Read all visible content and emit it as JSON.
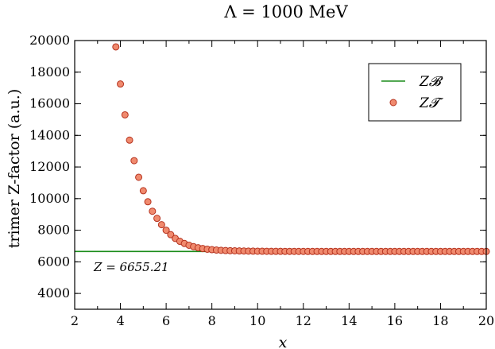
{
  "chart_data": {
    "type": "scatter",
    "title": "Λ = 1000 MeV",
    "xlabel": "x",
    "ylabel": "trimer Z-factor (a.u.)",
    "xlim": [
      2,
      20
    ],
    "ylim": [
      3000,
      20000
    ],
    "x_ticks": [
      2,
      4,
      6,
      8,
      10,
      12,
      14,
      16,
      18,
      20
    ],
    "y_ticks": [
      4000,
      6000,
      8000,
      10000,
      12000,
      14000,
      16000,
      18000,
      20000
    ],
    "grid": false,
    "legend": {
      "position": "top-right",
      "entries": [
        {
          "label": "Z_B",
          "display": "Z𝓑",
          "marker": "line",
          "color": "#1a8c1a"
        },
        {
          "label": "Z_T",
          "display": "Z𝓣",
          "marker": "circle",
          "color": "#f08a6e"
        }
      ]
    },
    "annotation": "Z = 6655.21",
    "series": [
      {
        "name": "Z_B",
        "kind": "line",
        "color": "#1a8c1a",
        "x": [
          2,
          20
        ],
        "y": [
          6655.21,
          6655.21
        ]
      },
      {
        "name": "Z_T",
        "kind": "scatter",
        "color": "#f08a6e",
        "edge": "#b5321e",
        "x": [
          3.8,
          4.0,
          4.2,
          4.4,
          4.6,
          4.8,
          5.0,
          5.2,
          5.4,
          5.6,
          5.8,
          6.0,
          6.2,
          6.4,
          6.6,
          6.8,
          7.0,
          7.2,
          7.4,
          7.6,
          7.8,
          8.0,
          8.2,
          8.4,
          8.6,
          8.8,
          9.0,
          9.2,
          9.4,
          9.6,
          9.8,
          10.0,
          10.2,
          10.4,
          10.6,
          10.8,
          11.0,
          11.2,
          11.4,
          11.6,
          11.8,
          12.0,
          12.2,
          12.4,
          12.6,
          12.8,
          13.0,
          13.2,
          13.4,
          13.6,
          13.8,
          14.0,
          14.2,
          14.4,
          14.6,
          14.8,
          15.0,
          15.2,
          15.4,
          15.6,
          15.8,
          16.0,
          16.2,
          16.4,
          16.6,
          16.8,
          17.0,
          17.2,
          17.4,
          17.6,
          17.8,
          18.0,
          18.2,
          18.4,
          18.6,
          18.8,
          19.0,
          19.2,
          19.4,
          19.6,
          19.8,
          20.0
        ],
        "y": [
          19600,
          17250,
          15300,
          13700,
          12400,
          11350,
          10500,
          9800,
          9200,
          8750,
          8350,
          8000,
          7720,
          7480,
          7300,
          7160,
          7050,
          6960,
          6890,
          6840,
          6800,
          6770,
          6745,
          6728,
          6715,
          6705,
          6697,
          6690,
          6684,
          6679,
          6675,
          6672,
          6669,
          6667,
          6665,
          6664,
          6663,
          6662,
          6661,
          6660,
          6659,
          6659,
          6658,
          6658,
          6658,
          6657,
          6657,
          6657,
          6657,
          6657,
          6656,
          6656,
          6656,
          6656,
          6656,
          6656,
          6656,
          6656,
          6656,
          6656,
          6656,
          6656,
          6656,
          6656,
          6656,
          6656,
          6656,
          6656,
          6656,
          6656,
          6656,
          6656,
          6656,
          6656,
          6656,
          6656,
          6656,
          6656,
          6656,
          6656,
          6656,
          6656
        ]
      }
    ]
  }
}
